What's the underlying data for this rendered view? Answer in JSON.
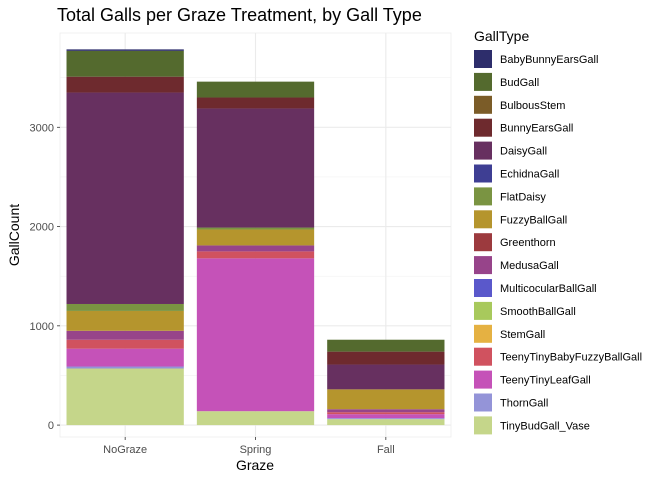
{
  "chart_data": {
    "type": "bar",
    "stacked": true,
    "title": "Total Galls per Graze Treatment, by Gall Type",
    "xlabel": "Graze",
    "ylabel": "GallCount",
    "categories": [
      "NoGraze",
      "Spring",
      "Fall"
    ],
    "ylim": [
      -120,
      3950
    ],
    "yticks": [
      0,
      1000,
      2000,
      3000
    ],
    "grid": true,
    "legend": {
      "title": "GallType",
      "placement": "right"
    },
    "series": [
      {
        "name": "BabyBunnyEarsGall",
        "color": "#2d2d6b",
        "values": [
          15,
          0,
          0
        ]
      },
      {
        "name": "BudGall",
        "color": "#546a2e",
        "values": [
          260,
          160,
          120
        ]
      },
      {
        "name": "BulbousStem",
        "color": "#7b5c28",
        "values": [
          0,
          0,
          0
        ]
      },
      {
        "name": "BunnyEarsGall",
        "color": "#6e2a2e",
        "values": [
          160,
          110,
          130
        ]
      },
      {
        "name": "DaisyGall",
        "color": "#673060",
        "values": [
          2130,
          1200,
          250
        ]
      },
      {
        "name": "EchidnaGall",
        "color": "#3e3e93",
        "values": [
          0,
          0,
          0
        ]
      },
      {
        "name": "FlatDaisy",
        "color": "#7a9442",
        "values": [
          70,
          20,
          0
        ]
      },
      {
        "name": "FuzzyBallGall",
        "color": "#b5952d",
        "values": [
          200,
          160,
          200
        ]
      },
      {
        "name": "Greenthorn",
        "color": "#9c3a3e",
        "values": [
          0,
          0,
          0
        ]
      },
      {
        "name": "MedusaGall",
        "color": "#97448a",
        "values": [
          90,
          60,
          30
        ]
      },
      {
        "name": "MulticocularBallGall",
        "color": "#5a58cb",
        "values": [
          0,
          0,
          0
        ]
      },
      {
        "name": "SmoothBallGall",
        "color": "#a8c95c",
        "values": [
          0,
          0,
          0
        ]
      },
      {
        "name": "StemGall",
        "color": "#e5b142",
        "values": [
          0,
          0,
          0
        ]
      },
      {
        "name": "TeenyTinyBabyFuzzyBallGall",
        "color": "#d0525f",
        "values": [
          90,
          70,
          20
        ]
      },
      {
        "name": "TeenyTinyLeafGall",
        "color": "#c552b8",
        "values": [
          180,
          1540,
          40
        ]
      },
      {
        "name": "ThornGall",
        "color": "#9494d8",
        "values": [
          20,
          0,
          10
        ]
      },
      {
        "name": "TinyBudGall_Vase",
        "color": "#c5d68a",
        "values": [
          570,
          140,
          60
        ]
      }
    ]
  }
}
